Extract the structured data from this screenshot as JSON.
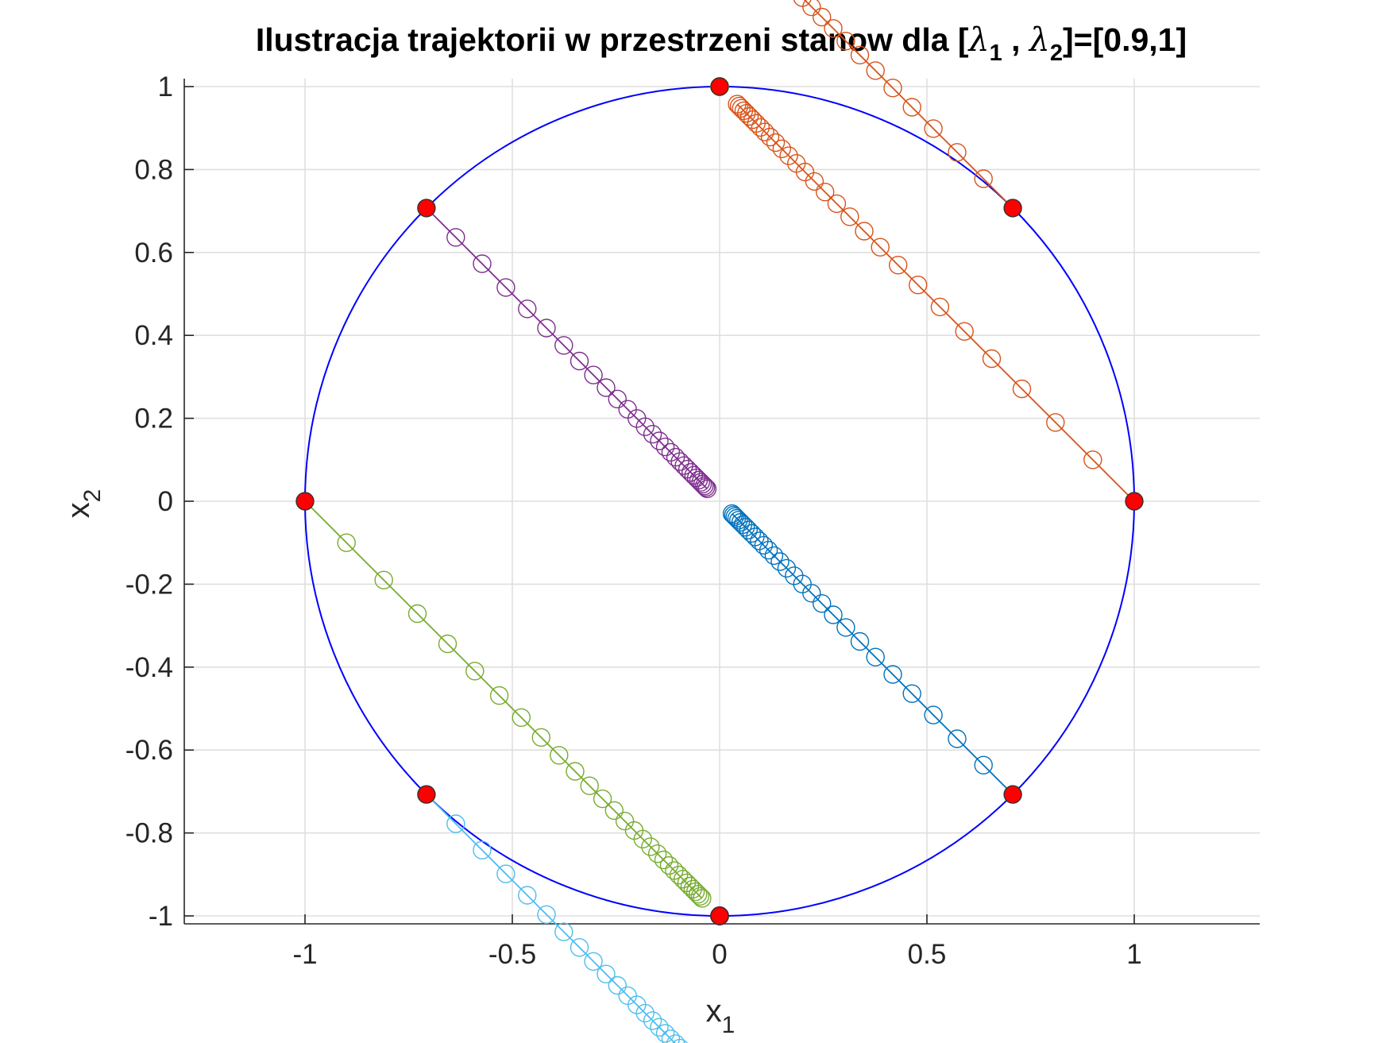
{
  "chart_data": {
    "type": "scatter",
    "title": {
      "prefix": "Ilustracja trajektorii w przestrzeni stanow dla [",
      "lambda": "λ",
      "sub1": "1",
      "sep": " , ",
      "sub2": "2",
      "suffix": "]=[0.9,1]"
    },
    "xlabel": {
      "main": "x",
      "sub": "1"
    },
    "ylabel": {
      "main": "x",
      "sub": "2"
    },
    "xlim": [
      -1.3,
      1.3
    ],
    "ylim": [
      -1.02,
      1.02
    ],
    "xticks": [
      -1,
      -0.5,
      0,
      0.5,
      1
    ],
    "xtick_labels": [
      "-1",
      "-0.5",
      "0",
      "0.5",
      "1"
    ],
    "yticks": [
      -1,
      -0.8,
      -0.6,
      -0.4,
      -0.2,
      0,
      0.2,
      0.4,
      0.6,
      0.8,
      1
    ],
    "ytick_labels": [
      "-1",
      "-0.8",
      "-0.6",
      "-0.4",
      "-0.2",
      "0",
      "0.2",
      "0.4",
      "0.6",
      "0.8",
      "1"
    ],
    "grid": true,
    "unit_circle": {
      "center": [
        0,
        0
      ],
      "radius": 1,
      "color": "#0000ff"
    },
    "start_marker_color": "#ff0000",
    "steps": 30,
    "series": [
      {
        "start": [
          0.7071,
          -0.7071
        ],
        "color": "#0072bd"
      },
      {
        "start": [
          1,
          0
        ],
        "color": "#d95319"
      },
      {
        "start": [
          0.7071,
          0.7071
        ],
        "color": "#d95319"
      },
      {
        "start": [
          0,
          1
        ],
        "color": "#edb120"
      },
      {
        "start": [
          -0.7071,
          0.7071
        ],
        "color": "#7e2f8e"
      },
      {
        "start": [
          -1,
          0
        ],
        "color": "#77ac30"
      },
      {
        "start": [
          -0.7071,
          -0.7071
        ],
        "color": "#4dbeee"
      },
      {
        "start": [
          0,
          -1
        ],
        "color": "#a2142f"
      }
    ]
  }
}
